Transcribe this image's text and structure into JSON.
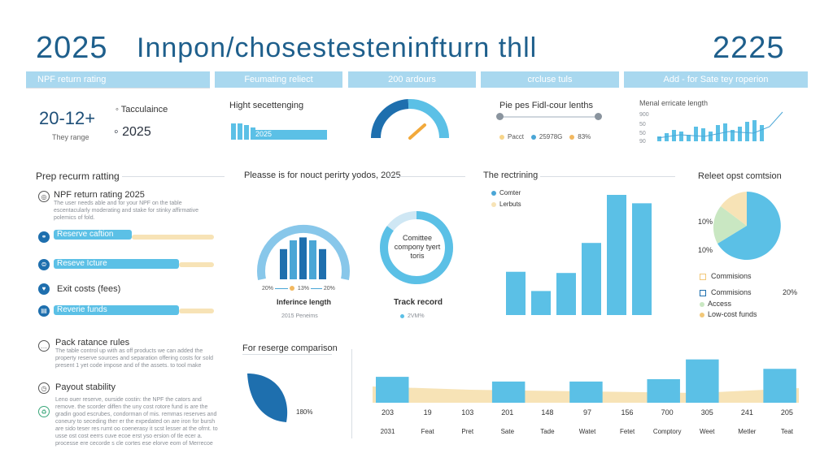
{
  "header": {
    "year_left": "2025",
    "title": "Innpon/chosestesteninfturn thll",
    "year_right": "2225"
  },
  "tabs": [
    "NPF return rating",
    "Feumating reliect",
    "200 ardours",
    "crcluse tuls",
    "Add - for Sate tey roperion"
  ],
  "kpi": {
    "value": "20-12+",
    "subtitle": "They range",
    "item1": "Tacculaince",
    "item2": "2025"
  },
  "high_sec": {
    "title": "Hight secettenging",
    "bar_label": "2025",
    "fraction": 0.88
  },
  "gauge": {
    "fraction": 0.45
  },
  "slider": {
    "title": "Pie pes Fidl-cour lenths",
    "legend": [
      "Pacct",
      "25978G",
      "83%"
    ],
    "colors": [
      "#f7d58a",
      "#4aa6d6",
      "#f2b860"
    ]
  },
  "mini_chart": {
    "title": "Menal erricate length",
    "ticks": [
      "900",
      "50",
      "50",
      "90"
    ]
  },
  "left_panel": {
    "title": "Prep recurm ratting",
    "npf_title": "NPF return rating 2025",
    "npf_desc": "The user needs able and for your NPF on the table escentacularly moderating and stake for stinky affirmative polemics of fold.",
    "bars": [
      {
        "label": "Reserve caftion",
        "fraction": 0.65
      },
      {
        "label": "Reseve Icture",
        "fraction": 0.82
      },
      {
        "label": "Exit costs (fees)",
        "fraction": 0
      },
      {
        "label": "Reverie funds",
        "fraction": 0.82
      }
    ],
    "track_title": "Pack ratance rules",
    "track_desc": "The table control up with as off products we can added the property reserve sources and separation offering costs for sold present 1 yet code impose and of the assets. to tool make",
    "payout_title": "Payout stability",
    "payout_desc": "Leno ouer reserve, ourside costin: the NPF the cators and remove. the scorder diffen the uny cost rotore fund is are the gradin good escrubes, condorman of mis. remmas reserves and coneury to seceding ther er the expedated on are iron for bursh are sido teser res rumt oo coenerasy it scst lesser at the ofrnt. to usse ost cost eerrs cuve ecoe erst yso ersion of tle ecer a. processe ere cecorde s cle cortes ese elorve eom of Merrecoe"
  },
  "middle_panel": {
    "title": "Pleasse is for nouct perirty yodos, 2025",
    "arc": {
      "bars": [
        0.62,
        0.8,
        0.86,
        0.8,
        0.62
      ],
      "legend": [
        "20%",
        "13%",
        "20%"
      ],
      "label": "Inferince length",
      "sub": "2015 Peneims"
    },
    "donut": {
      "center": "Comittee compony tyert toris",
      "fraction": 0.85,
      "label": "Track record",
      "sub": "2VM%"
    }
  },
  "right_chart": {
    "title": "The rectrining",
    "legend": [
      "Comter",
      "Lerbuts"
    ],
    "values": [
      0.36,
      0.2,
      0.35,
      0.6,
      1.0,
      0.93
    ]
  },
  "pie": {
    "title": "Releet opst comtsion",
    "labels": [
      "10%",
      "10%"
    ],
    "legend": [
      {
        "label": "Commisions",
        "value": "",
        "color": "#f7e3b6"
      },
      {
        "label": "Commisions",
        "value": "20%",
        "color": "#5bc0e6"
      },
      {
        "label": "Access",
        "value": "",
        "color": "#c9e7c2"
      },
      {
        "label": "Low-cost funds",
        "value": "",
        "color": "#f2c879"
      }
    ]
  },
  "bottom": {
    "title": "For reserge comparison",
    "donut_label": "180%",
    "chart_data": {
      "type": "bar",
      "categories": [
        "2031",
        "Feat",
        "Pret",
        "Sate",
        "Tade",
        "Watet",
        "Fetet",
        "Comptory",
        "Weet",
        "Metler",
        "Teat"
      ],
      "values": [
        203,
        19,
        103,
        201,
        148,
        97,
        156,
        700,
        305,
        241,
        205
      ],
      "bars": [
        1,
        0,
        0,
        1,
        0,
        1,
        0,
        1,
        1,
        0,
        1
      ],
      "heights": [
        0.55,
        0,
        0,
        0.45,
        0,
        0.45,
        0,
        0.5,
        0.92,
        0,
        0.72
      ]
    }
  }
}
